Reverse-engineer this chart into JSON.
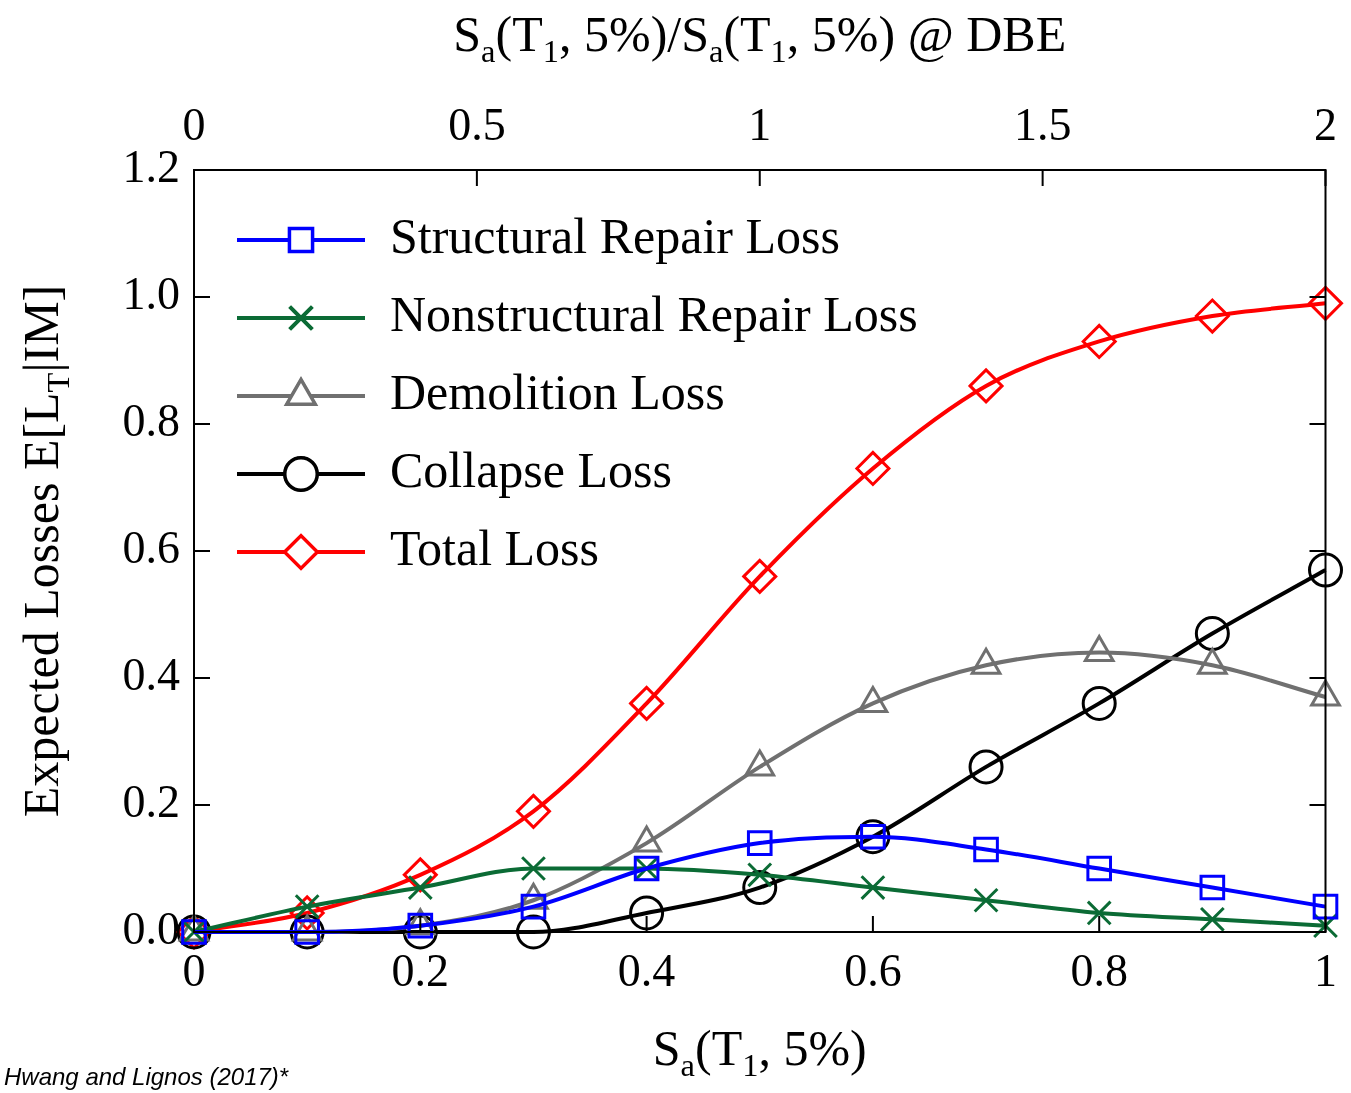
{
  "chart_data": {
    "type": "line",
    "xlabel": "S$_{a}$(T$_{1}$, 5%)",
    "x2label": "S$_{a}$(T$_{1}$, 5%)/S$_{a}$(T$_{1}$, 5%) @ DBE",
    "ylabel": "Expected Losses E[L$_{T}$|IM]",
    "x": [
      0,
      0.1,
      0.2,
      0.3,
      0.4,
      0.5,
      0.6,
      0.7,
      0.8,
      0.9,
      1.0
    ],
    "series": [
      {
        "name": "Structural Repair Loss",
        "color": "#0000ff",
        "marker": "square",
        "values": [
          0,
          0,
          0.01,
          0.04,
          0.1,
          0.14,
          0.15,
          0.13,
          0.1,
          0.07,
          0.04
        ]
      },
      {
        "name": "Nonstructural Repair Loss",
        "color": "#0b6b35",
        "marker": "cross",
        "values": [
          0,
          0.04,
          0.07,
          0.1,
          0.1,
          0.09,
          0.07,
          0.05,
          0.03,
          0.02,
          0.01
        ]
      },
      {
        "name": "Demolition Loss",
        "color": "#707070",
        "marker": "triangle",
        "values": [
          0,
          0,
          0.01,
          0.05,
          0.14,
          0.26,
          0.36,
          0.42,
          0.44,
          0.42,
          0.37
        ]
      },
      {
        "name": "Collapse Loss",
        "color": "#000000",
        "marker": "circle",
        "values": [
          0,
          0,
          0,
          0,
          0.03,
          0.07,
          0.15,
          0.26,
          0.36,
          0.47,
          0.57
        ]
      },
      {
        "name": "Total Loss",
        "color": "#ff0000",
        "marker": "diamond",
        "values": [
          0,
          0.03,
          0.09,
          0.19,
          0.36,
          0.56,
          0.73,
          0.86,
          0.93,
          0.97,
          0.99
        ]
      }
    ],
    "xlim": [
      0,
      1
    ],
    "xticks": [
      0,
      0.2,
      0.4,
      0.6,
      0.8,
      1
    ],
    "x2lim": [
      0,
      2
    ],
    "x2ticks": [
      0,
      0.5,
      1,
      1.5,
      2
    ],
    "ylim": [
      0,
      1.2
    ],
    "yticks": [
      {
        "value": 0,
        "label": "0.0"
      },
      {
        "value": 0.2,
        "label": "0.2"
      },
      {
        "value": 0.4,
        "label": "0.4"
      },
      {
        "value": 0.6,
        "label": "0.6"
      },
      {
        "value": 0.8,
        "label": "0.8"
      },
      {
        "value": 1,
        "label": "1.0"
      },
      {
        "value": 1.2,
        "label": "1.2"
      }
    ],
    "grid": false,
    "legend": "top left",
    "line_style": "solid",
    "annotations": [
      "Hwang and Lignos (2017)*"
    ]
  }
}
